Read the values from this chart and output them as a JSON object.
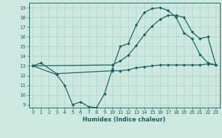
{
  "xlabel": "Humidex (Indice chaleur)",
  "bg_color": "#cce8e0",
  "line_color": "#1a6060",
  "grid_color": "#b0d8cc",
  "xlim": [
    -0.5,
    23.5
  ],
  "ylim": [
    8.7,
    19.5
  ],
  "yticks": [
    9,
    10,
    11,
    12,
    13,
    14,
    15,
    16,
    17,
    18,
    19
  ],
  "xticks": [
    0,
    1,
    2,
    3,
    4,
    5,
    6,
    7,
    8,
    9,
    10,
    11,
    12,
    13,
    14,
    15,
    16,
    17,
    18,
    19,
    20,
    21,
    22,
    23
  ],
  "line1_x": [
    0,
    1,
    3,
    10,
    11,
    12,
    13,
    14,
    15,
    16,
    17,
    18,
    19,
    20,
    21,
    22,
    23
  ],
  "line1_y": [
    13.0,
    13.3,
    12.2,
    12.5,
    12.5,
    12.6,
    12.8,
    12.9,
    13.0,
    13.1,
    13.1,
    13.1,
    13.1,
    13.1,
    13.1,
    13.2,
    13.1
  ],
  "line2_x": [
    0,
    3,
    4,
    5,
    6,
    7,
    8,
    9,
    10,
    11,
    12,
    13,
    14,
    15,
    16,
    17,
    18,
    19,
    20,
    21,
    22,
    23
  ],
  "line2_y": [
    13.0,
    12.1,
    11.0,
    9.0,
    9.3,
    8.8,
    8.7,
    10.1,
    12.7,
    15.0,
    15.3,
    17.2,
    18.5,
    18.9,
    19.0,
    18.7,
    18.0,
    16.4,
    15.8,
    14.2,
    13.3,
    13.1
  ],
  "line3_x": [
    0,
    10,
    11,
    12,
    13,
    14,
    15,
    16,
    17,
    18,
    19,
    20,
    21,
    22,
    23
  ],
  "line3_y": [
    13.0,
    13.1,
    13.5,
    14.1,
    15.1,
    16.2,
    17.1,
    17.8,
    18.2,
    18.2,
    18.0,
    16.5,
    15.8,
    16.0,
    13.1
  ]
}
